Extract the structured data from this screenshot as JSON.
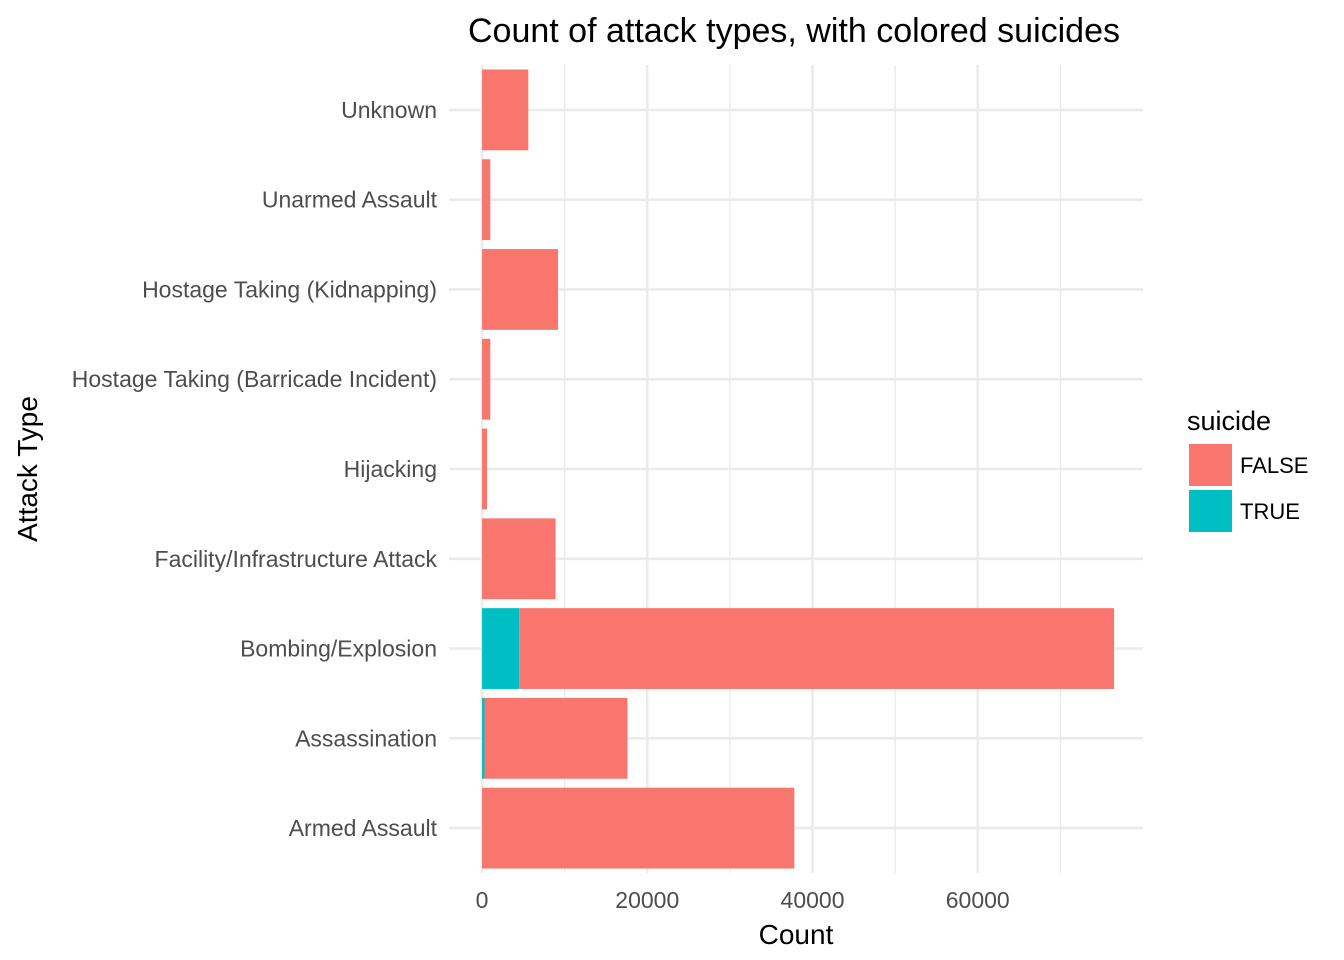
{
  "chart_data": {
    "type": "bar",
    "orientation": "horizontal",
    "stacked": true,
    "title": "Count of attack types, with colored suicides",
    "xlabel": "Count",
    "ylabel": "Attack Type",
    "categories": [
      "Armed Assault",
      "Assassination",
      "Bombing/Explosion",
      "Facility/Infrastructure Attack",
      "Hijacking",
      "Hostage Taking (Barricade Incident)",
      "Hostage Taking (Kidnapping)",
      "Unarmed Assault",
      "Unknown"
    ],
    "series": [
      {
        "name": "TRUE",
        "color": "#00BFC4",
        "values": [
          0,
          300,
          4500,
          0,
          0,
          0,
          0,
          0,
          0
        ]
      },
      {
        "name": "FALSE",
        "color": "#F8766D",
        "values": [
          37800,
          17300,
          72000,
          8900,
          600,
          1000,
          9200,
          1000,
          5600
        ]
      }
    ],
    "xlim": [
      -4000,
      80000
    ],
    "xticks": [
      0,
      20000,
      40000,
      60000
    ],
    "xtick_labels": [
      "0",
      "20000",
      "40000",
      "60000"
    ],
    "grid": true,
    "legend": {
      "title": "suicide",
      "position": "right",
      "entries": [
        {
          "label": "FALSE",
          "color": "#F8766D"
        },
        {
          "label": "TRUE",
          "color": "#00BFC4"
        }
      ]
    }
  }
}
